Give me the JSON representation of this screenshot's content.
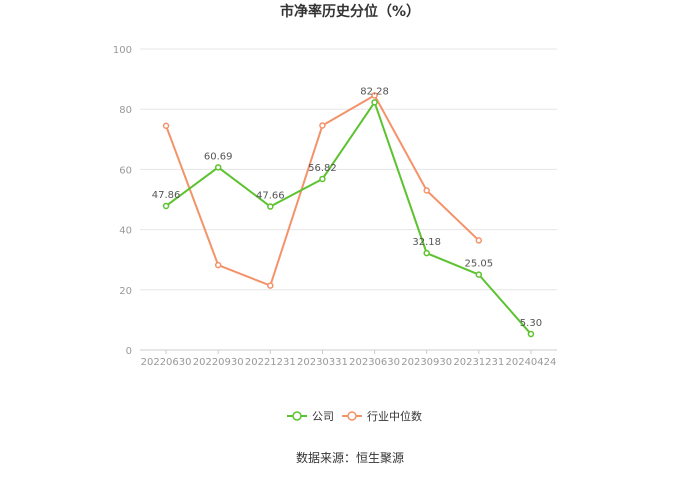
{
  "chart_data": {
    "type": "line",
    "title": "市净率历史分位（%）",
    "categories": [
      "20220630",
      "20220930",
      "20221231",
      "20230331",
      "20230630",
      "20230930",
      "20231231",
      "20240424"
    ],
    "series": [
      {
        "name": "公司",
        "color": "#5cc22f",
        "values": [
          47.86,
          60.69,
          47.66,
          56.82,
          82.28,
          32.18,
          25.05,
          5.3
        ],
        "labels": [
          "47.86",
          "60.69",
          "47.66",
          "56.82",
          "82.28",
          "32.18",
          "25.05",
          "5.30"
        ]
      },
      {
        "name": "行业中位数",
        "color": "#f4926a",
        "values": [
          74.5,
          28.2,
          21.4,
          74.6,
          84.6,
          53.0,
          36.4,
          null
        ]
      }
    ],
    "ylim": [
      0,
      100
    ],
    "yticks": [
      0,
      20,
      40,
      60,
      80,
      100
    ],
    "grid": true,
    "legend_position": "bottom-center"
  },
  "footer": {
    "source": "数据来源：恒生聚源"
  }
}
